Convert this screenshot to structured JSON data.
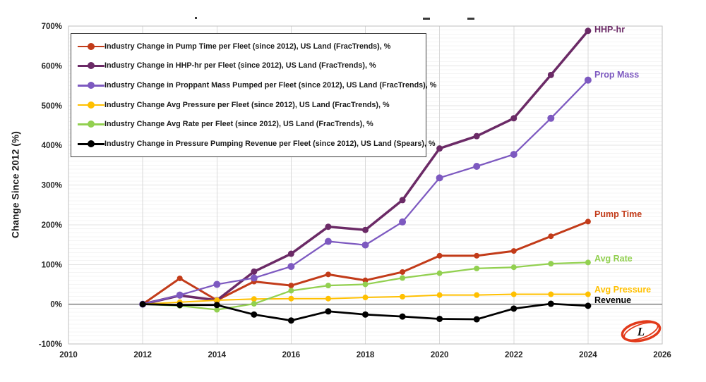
{
  "y_axis": {
    "title": "Change Since 2012 (%)",
    "ticks": [
      "700%",
      "600%",
      "500%",
      "400%",
      "300%",
      "200%",
      "100%",
      "0%",
      "-100%"
    ],
    "tick_values": [
      700,
      600,
      500,
      400,
      300,
      200,
      100,
      0,
      -100
    ]
  },
  "x_axis": {
    "ticks": [
      "2010",
      "2012",
      "2014",
      "2016",
      "2018",
      "2020",
      "2022",
      "2024",
      "2026"
    ],
    "tick_values": [
      2010,
      2012,
      2014,
      2016,
      2018,
      2020,
      2022,
      2024,
      2026
    ]
  },
  "chart_data": {
    "type": "line",
    "x": [
      2012,
      2013,
      2014,
      2015,
      2016,
      2017,
      2018,
      2019,
      2020,
      2021,
      2022,
      2023,
      2024
    ],
    "xlim": [
      2010,
      2026
    ],
    "ylim": [
      -100,
      700
    ],
    "grid": {
      "h_minor_step": 10,
      "h_major_step": 100,
      "v_step_years": 2,
      "zero_line": true
    },
    "legend_position": "upper-left",
    "series": [
      {
        "name": "Pump Time",
        "legend_label": "Industry Change in Pump Time per Fleet (since 2012), US Land (FracTrends), %",
        "end_label": "Pump Time",
        "color": "#C23B19",
        "line_width": 3,
        "marker_radius": 4,
        "values": [
          0,
          65,
          10,
          57,
          47,
          75,
          60,
          81,
          122,
          122,
          134,
          171,
          208
        ]
      },
      {
        "name": "HHP-hr",
        "legend_label": "Industry Change in HHP-hr per Fleet (since 2012), US Land (FracTrends), %",
        "end_label": "HHP-hr",
        "color": "#6B2A66",
        "line_width": 3.5,
        "marker_radius": 4.5,
        "values": [
          0,
          22,
          10,
          82,
          127,
          195,
          187,
          262,
          392,
          423,
          468,
          577,
          688
        ]
      },
      {
        "name": "Prop Mass",
        "legend_label": "Industry Change in Proppant Mass Pumped per Fleet (since 2012), US Land (FracTrends), %",
        "end_label": "Prop Mass",
        "color": "#7D59C0",
        "line_width": 2.25,
        "marker_radius": 5,
        "values": [
          0,
          23,
          50,
          66,
          95,
          158,
          149,
          207,
          318,
          347,
          377,
          468,
          564
        ]
      },
      {
        "name": "Avg Pressure",
        "legend_label": "Industry Change Avg Pressure per Fleet (since 2012), US Land (FracTrends), %",
        "end_label": "Avg Pressure",
        "color": "#FFC000",
        "line_width": 2,
        "marker_radius": 4,
        "values": [
          0,
          5,
          10,
          13,
          14,
          14,
          17,
          19,
          23,
          23,
          25,
          25,
          25
        ]
      },
      {
        "name": "Avg Rate",
        "legend_label": "Industry Change Avg Rate per Fleet (since 2012), US Land (FracTrends), %",
        "end_label": "Avg Rate",
        "color": "#92D050",
        "line_width": 2.25,
        "marker_radius": 4,
        "values": [
          0,
          -4,
          -14,
          1,
          34,
          47,
          50,
          66,
          78,
          90,
          93,
          102,
          105
        ]
      },
      {
        "name": "Revenue",
        "legend_label": "Industry Change in Pressure Pumping Revenue per Fleet (since 2012), US Land (Spears), %",
        "end_label": "Revenue",
        "color": "#000000",
        "line_width": 2.75,
        "marker_radius": 4.5,
        "values": [
          0,
          -2,
          -2,
          -26,
          -41,
          -18,
          -26,
          -31,
          -37,
          -38,
          -11,
          1,
          -4
        ]
      }
    ]
  },
  "colors": {
    "zero_line": "#7F7F7F",
    "grid_minor": "#F4F4F4",
    "grid_major": "#E3E3E3",
    "grid_vertical": "#D9D9D9",
    "plot_border": "#BFBFBF",
    "tick_text": "#262626",
    "logo_ring": "#E23A1B",
    "logo_letter_color": "#111111"
  },
  "branding": {
    "logo_letter": "L"
  }
}
